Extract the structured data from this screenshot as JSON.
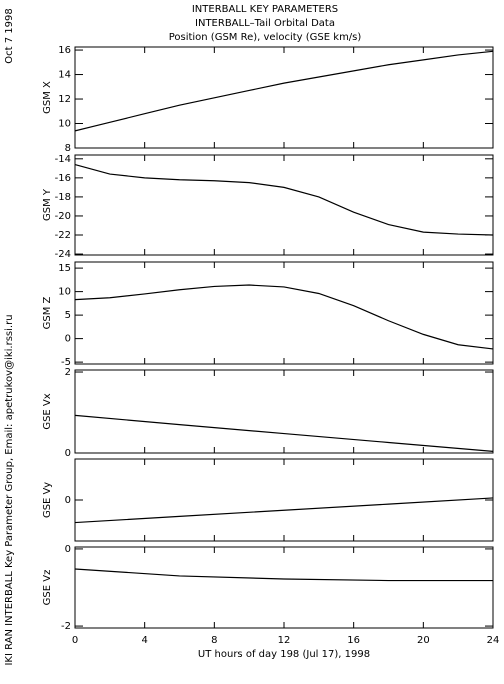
{
  "header": {
    "lines": [
      "INTERBALL KEY PARAMETERS",
      "INTERBALL–Tail Orbital Data",
      "Position (GSM Re), velocity (GSE km/s)"
    ],
    "side_date": "Oct  7 1998",
    "side_credit": "IKI RAN INTERBALL Key Parameter Group, Email: apetrukov@iki.rssi.ru"
  },
  "chart_data": [
    {
      "type": "line",
      "ylabel": "GSM X",
      "x": [
        0,
        2,
        4,
        6,
        8,
        10,
        12,
        14,
        16,
        18,
        20,
        22,
        24
      ],
      "values": [
        9.4,
        10.1,
        10.8,
        11.5,
        12.1,
        12.7,
        13.3,
        13.8,
        14.3,
        14.8,
        15.2,
        15.6,
        15.9
      ],
      "xlim": [
        0,
        24
      ],
      "xticks": [
        0,
        4,
        8,
        12,
        16,
        20,
        24
      ],
      "ylim": [
        8,
        16.25
      ],
      "yticks": [
        8,
        10,
        12,
        14,
        16
      ],
      "color": "#000000"
    },
    {
      "type": "line",
      "ylabel": "GSM Y",
      "x": [
        0,
        2,
        4,
        6,
        8,
        10,
        12,
        14,
        16,
        18,
        20,
        22,
        24
      ],
      "values": [
        -14.6,
        -15.6,
        -16.0,
        -16.2,
        -16.3,
        -16.5,
        -17.0,
        -18.0,
        -19.6,
        -20.9,
        -21.7,
        -21.9,
        -22.0
      ],
      "xlim": [
        0,
        24
      ],
      "xticks": [
        0,
        4,
        8,
        12,
        16,
        20,
        24
      ],
      "ylim": [
        -24.1,
        -13.6
      ],
      "yticks": [
        -24,
        -22,
        -20,
        -18,
        -16,
        -14
      ],
      "color": "#000000"
    },
    {
      "type": "line",
      "ylabel": "GSM Z",
      "x": [
        0,
        2,
        4,
        6,
        8,
        10,
        12,
        14,
        16,
        18,
        20,
        22,
        24
      ],
      "values": [
        8.3,
        8.7,
        9.5,
        10.4,
        11.1,
        11.4,
        11.0,
        9.6,
        7.0,
        3.8,
        0.9,
        -1.3,
        -2.2
      ],
      "xlim": [
        0,
        24
      ],
      "xticks": [
        0,
        4,
        8,
        12,
        16,
        20,
        24
      ],
      "ylim": [
        -5.4,
        16.3
      ],
      "yticks": [
        -5,
        0,
        5,
        10,
        15
      ],
      "color": "#000000"
    },
    {
      "type": "line",
      "ylabel": "GSE Vx",
      "x": [
        0,
        6,
        12,
        18,
        24
      ],
      "values": [
        0.93,
        0.7,
        0.48,
        0.26,
        0.04
      ],
      "xlim": [
        0,
        24
      ],
      "xticks": [
        0,
        4,
        8,
        12,
        16,
        20,
        24
      ],
      "ylim": [
        0,
        2.05
      ],
      "yticks": [
        0,
        2
      ],
      "color": "#000000"
    },
    {
      "type": "line",
      "ylabel": "GSE Vy",
      "x": [
        0,
        6,
        12,
        18,
        24
      ],
      "values": [
        -1.1,
        -0.8,
        -0.5,
        -0.2,
        0.1
      ],
      "xlim": [
        0,
        24
      ],
      "xticks": [
        0,
        4,
        8,
        12,
        16,
        20,
        24
      ],
      "ylim": [
        -2,
        2
      ],
      "yticks": [
        0
      ],
      "color": "#000000"
    },
    {
      "type": "line",
      "ylabel": "GSE Vz",
      "x": [
        0,
        6,
        12,
        18,
        24
      ],
      "values": [
        -0.52,
        -0.7,
        -0.78,
        -0.82,
        -0.82
      ],
      "xlim": [
        0,
        24
      ],
      "xticks": [
        0,
        4,
        8,
        12,
        16,
        20,
        24
      ],
      "ylim": [
        -2.05,
        0.05
      ],
      "yticks": [
        -2,
        0
      ],
      "color": "#000000",
      "xlabel": "UT hours of day 198 (Jul 17), 1998"
    }
  ]
}
